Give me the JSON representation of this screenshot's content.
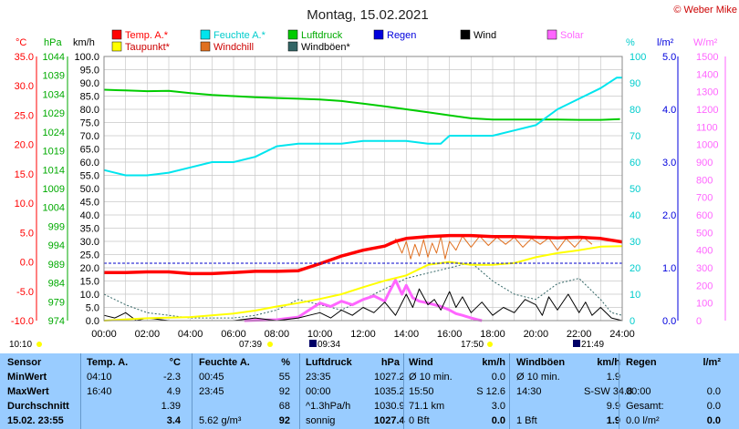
{
  "header": {
    "title": "Montag, 15.02.2021",
    "copyright": "© Weber Mike"
  },
  "colors": {
    "temp": "#ff0000",
    "humidity": "#00e5ee",
    "pressure": "#00cc00",
    "dewpoint": "#ffff00",
    "windchill": "#e07020",
    "wind": "#000000",
    "gust": "#336666",
    "rain": "#0000dd",
    "solar": "#ff66ff",
    "table_bg": "#99ccff"
  },
  "legend": [
    {
      "label": "Temp. A.*",
      "color": "#ff0000",
      "text_color": "#ff0000"
    },
    {
      "label": "Feuchte A.*",
      "color": "#00e5ee",
      "text_color": "#00cccc"
    },
    {
      "label": "Luftdruck",
      "color": "#00cc00",
      "text_color": "#00aa00"
    },
    {
      "label": "Regen",
      "color": "#0000dd",
      "text_color": "#0000dd"
    },
    {
      "label": "Wind",
      "color": "#000000",
      "text_color": "#000000"
    },
    {
      "label": "Solar",
      "color": "#ff66ff",
      "text_color": "#ff66ff"
    },
    {
      "label": "Taupunkt*",
      "color": "#ffff00",
      "text_color": "#cc0000"
    },
    {
      "label": "Windchill",
      "color": "#e07020",
      "text_color": "#cc0000"
    },
    {
      "label": "Windböen*",
      "color": "#336666",
      "text_color": "#000000"
    }
  ],
  "chart_data": {
    "type": "line",
    "axes": {
      "temp": {
        "unit": "°C",
        "min": -10,
        "max": 35,
        "ticks": [
          "35.0",
          "30.0",
          "25.0",
          "20.0",
          "15.0",
          "10.0",
          "5.0",
          "0.0",
          "-5.0",
          "-10.0"
        ]
      },
      "pressure": {
        "unit": "hPa",
        "min": 974,
        "max": 1044,
        "ticks": [
          "1044",
          "1039",
          "1034",
          "1029",
          "1024",
          "1019",
          "1014",
          "1009",
          "1004",
          "999",
          "994",
          "989",
          "984",
          "979",
          "974"
        ]
      },
      "wind": {
        "unit": "km/h",
        "min": 0,
        "max": 100,
        "ticks": [
          "100.0",
          "95.0",
          "90.0",
          "85.0",
          "80.0",
          "75.0",
          "70.0",
          "65.0",
          "60.0",
          "55.0",
          "50.0",
          "45.0",
          "40.0",
          "35.0",
          "30.0",
          "25.0",
          "20.0",
          "15.0",
          "10.0",
          "5.0",
          "0.0"
        ]
      },
      "humidity": {
        "unit": "%",
        "min": 0,
        "max": 100,
        "ticks": [
          "100",
          "90",
          "80",
          "70",
          "60",
          "50",
          "40",
          "30",
          "20",
          "10",
          "0"
        ]
      },
      "rain": {
        "unit": "l/m²",
        "min": 0,
        "max": 5,
        "ticks": [
          "5.0",
          "4.0",
          "3.0",
          "2.0",
          "1.0",
          "0.0"
        ]
      },
      "solar": {
        "unit": "W/m²",
        "min": 0,
        "max": 1500,
        "ticks": [
          "1500",
          "1400",
          "1300",
          "1200",
          "1100",
          "1000",
          "900",
          "800",
          "700",
          "600",
          "500",
          "400",
          "300",
          "200",
          "100",
          "0"
        ]
      },
      "x": {
        "min": 0,
        "max": 24,
        "ticks": [
          "00:00",
          "02:00",
          "04:00",
          "06:00",
          "08:00",
          "10:00",
          "12:00",
          "14:00",
          "16:00",
          "18:00",
          "20:00",
          "22:00",
          "24:00"
        ]
      }
    },
    "grid": true,
    "series": [
      {
        "name": "Temp. A.*",
        "axis": "temp",
        "color": "#ff0000",
        "width": 3.5,
        "x": [
          0,
          1,
          2,
          3,
          4,
          5,
          6,
          7,
          8,
          9,
          10,
          11,
          12,
          13,
          13.5,
          14,
          15,
          16,
          17,
          18,
          19,
          20,
          21,
          22,
          23,
          24
        ],
        "y": [
          -1.8,
          -1.8,
          -1.7,
          -1.7,
          -2.0,
          -2.0,
          -1.8,
          -1.6,
          -1.6,
          -1.5,
          -0.3,
          1.0,
          2.0,
          2.7,
          3.5,
          4.0,
          4.3,
          4.5,
          4.5,
          4.3,
          4.3,
          4.2,
          4.1,
          4.2,
          4.0,
          3.4
        ]
      },
      {
        "name": "Feuchte A.*",
        "axis": "humidity",
        "color": "#00e5ee",
        "width": 2,
        "x": [
          0,
          1,
          2,
          3,
          4,
          5,
          6,
          7,
          8,
          9,
          10,
          11,
          12,
          13,
          14,
          15,
          15.6,
          16,
          17,
          18,
          19,
          20,
          21,
          22,
          23,
          23.75,
          24
        ],
        "y": [
          57,
          55,
          55,
          56,
          58,
          60,
          60,
          62,
          66,
          67,
          67,
          67,
          68,
          68,
          68,
          67,
          67,
          70,
          70,
          70,
          72,
          74,
          80,
          84,
          88,
          92,
          92
        ]
      },
      {
        "name": "Luftdruck",
        "axis": "pressure",
        "color": "#00cc00",
        "width": 2,
        "x": [
          0,
          1,
          2,
          3,
          4,
          5,
          6,
          7,
          8,
          9,
          10,
          11,
          12,
          13,
          14,
          15,
          16,
          17,
          18,
          19,
          20,
          21,
          22,
          23,
          23.9
        ],
        "y": [
          1035.2,
          1035.0,
          1034.8,
          1034.9,
          1034.3,
          1033.8,
          1033.5,
          1033.2,
          1033.0,
          1032.8,
          1032.6,
          1032.2,
          1031.5,
          1030.8,
          1030.0,
          1029.2,
          1028.4,
          1027.6,
          1027.3,
          1027.3,
          1027.3,
          1027.3,
          1027.2,
          1027.2,
          1027.4
        ]
      },
      {
        "name": "Taupunkt*",
        "axis": "temp",
        "color": "#ffff00",
        "width": 2,
        "x": [
          0,
          2,
          4,
          6,
          7,
          8,
          9,
          10,
          11,
          12,
          13,
          14,
          15,
          16,
          17,
          18,
          19,
          20,
          21,
          22,
          23,
          24
        ],
        "y": [
          -10.0,
          -9.6,
          -9.4,
          -8.8,
          -8.3,
          -7.6,
          -7.0,
          -6.3,
          -5.5,
          -4.3,
          -3.2,
          -2.3,
          -0.5,
          0.0,
          -0.5,
          -0.5,
          -0.2,
          0.8,
          1.5,
          2.0,
          2.6,
          2.7
        ]
      },
      {
        "name": "Windchill",
        "axis": "temp",
        "color": "#e07020",
        "width": 1,
        "x": [
          13.5,
          13.8,
          14.0,
          14.2,
          14.4,
          14.6,
          14.8,
          15.0,
          15.2,
          15.4,
          15.6,
          15.8,
          16.0,
          16.3,
          16.6,
          17.0,
          17.4,
          17.8,
          18.2,
          18.6,
          19.0,
          19.4,
          19.8,
          20.2,
          20.6,
          21.0,
          21.4,
          21.8,
          22.2,
          22.6
        ],
        "y": [
          4.0,
          1.5,
          3.5,
          0.5,
          3.0,
          1.0,
          3.8,
          0.8,
          3.2,
          1.5,
          4.3,
          0.5,
          3.5,
          2.0,
          4.4,
          2.5,
          4.4,
          2.8,
          4.2,
          3.0,
          4.2,
          2.5,
          4.0,
          3.0,
          4.1,
          2.0,
          4.0,
          2.5,
          4.2,
          3.0
        ]
      },
      {
        "name": "Wind",
        "axis": "wind",
        "color": "#000000",
        "width": 1,
        "x": [
          0,
          0.5,
          1,
          1.5,
          2,
          3,
          4,
          5,
          6,
          7,
          8,
          9,
          9.5,
          10,
          10.5,
          11,
          11.5,
          12,
          12.5,
          13,
          13.5,
          14,
          14.3,
          14.6,
          15,
          15.3,
          15.6,
          16,
          16.3,
          16.6,
          17,
          17.5,
          18,
          18.5,
          19,
          19.5,
          20,
          20.3,
          20.6,
          21,
          21.5,
          22,
          22.3,
          22.6,
          23,
          23.5,
          24
        ],
        "y": [
          2,
          1,
          3,
          0,
          1,
          0,
          0,
          0,
          0,
          1,
          0,
          1,
          2,
          3,
          1,
          4,
          2,
          5,
          3,
          7,
          2,
          10,
          5,
          12,
          6,
          8,
          4,
          11,
          5,
          9,
          3,
          7,
          2,
          5,
          3,
          8,
          6,
          2,
          9,
          4,
          10,
          3,
          7,
          2,
          5,
          1,
          0
        ]
      },
      {
        "name": "Windböen*",
        "axis": "wind",
        "color": "#336666",
        "width": 1,
        "dash": "2,2",
        "x": [
          0,
          0.5,
          1,
          2,
          3,
          4,
          5,
          6,
          7,
          8,
          9,
          10,
          11,
          12,
          13,
          14,
          15,
          16,
          17,
          18,
          19,
          20,
          21,
          22,
          22.5,
          23,
          23.5,
          24
        ],
        "y": [
          10,
          8,
          6,
          3,
          2,
          1,
          1,
          1,
          2,
          4,
          8,
          6,
          4,
          8,
          12,
          16,
          18,
          20,
          22,
          15,
          10,
          8,
          14,
          16,
          12,
          8,
          3,
          2
        ]
      },
      {
        "name": "Solar",
        "axis": "solar",
        "color": "#ff66ff",
        "width": 3,
        "x": [
          6.5,
          7,
          8,
          9,
          9.5,
          10,
          10.5,
          11,
          11.5,
          12,
          12.5,
          13,
          13.2,
          13.5,
          13.8,
          14,
          14.3,
          14.6,
          15,
          15.3,
          15.6,
          16,
          16.3,
          16.6,
          17,
          17.3,
          17.5
        ],
        "y": [
          0,
          2,
          5,
          20,
          60,
          100,
          80,
          110,
          90,
          120,
          140,
          110,
          160,
          230,
          150,
          200,
          130,
          110,
          100,
          90,
          80,
          60,
          40,
          30,
          15,
          5,
          0
        ]
      }
    ]
  },
  "markers": {
    "left_time": "10:10",
    "sunrise": "07:39",
    "moonset": "09:34",
    "sunset": "17:50",
    "moonrise": "21:49"
  },
  "table": {
    "headers": [
      "Sensor",
      "Temp. A.",
      "°C",
      "Feuchte A.",
      "%",
      "Luftdruck",
      "hPa",
      "Wind",
      "km/h",
      "Windböen",
      "km/h",
      "Regen",
      "l/m²"
    ],
    "rows": [
      [
        "MinWert",
        "04:10",
        "-2.3",
        "00:45",
        "55",
        "23:35",
        "1027.2",
        "Ø 10 min.",
        "0.0",
        "Ø 10 min.",
        "1.9",
        "",
        ""
      ],
      [
        "MaxWert",
        "16:40",
        "4.9",
        "23:45",
        "92",
        "00:00",
        "1035.2",
        "15:50",
        "S 12.6",
        "14:30",
        "S-SW 34.8",
        "00:00",
        "0.0"
      ],
      [
        "Durchschnitt",
        "",
        "1.39",
        "",
        "68",
        "^1.3hPa/h",
        "1030.9",
        "71.1 km",
        "3.0",
        "",
        "9.9",
        "Gesamt:",
        "0.0"
      ],
      [
        "15.02. 23:55",
        "",
        "3.4",
        "5.62 g/m³",
        "92",
        "sonnig",
        "1027.4",
        "0 Bft",
        "0.0",
        "1 Bft",
        "1.9",
        "0.0 l/m²",
        "0.0"
      ]
    ]
  }
}
